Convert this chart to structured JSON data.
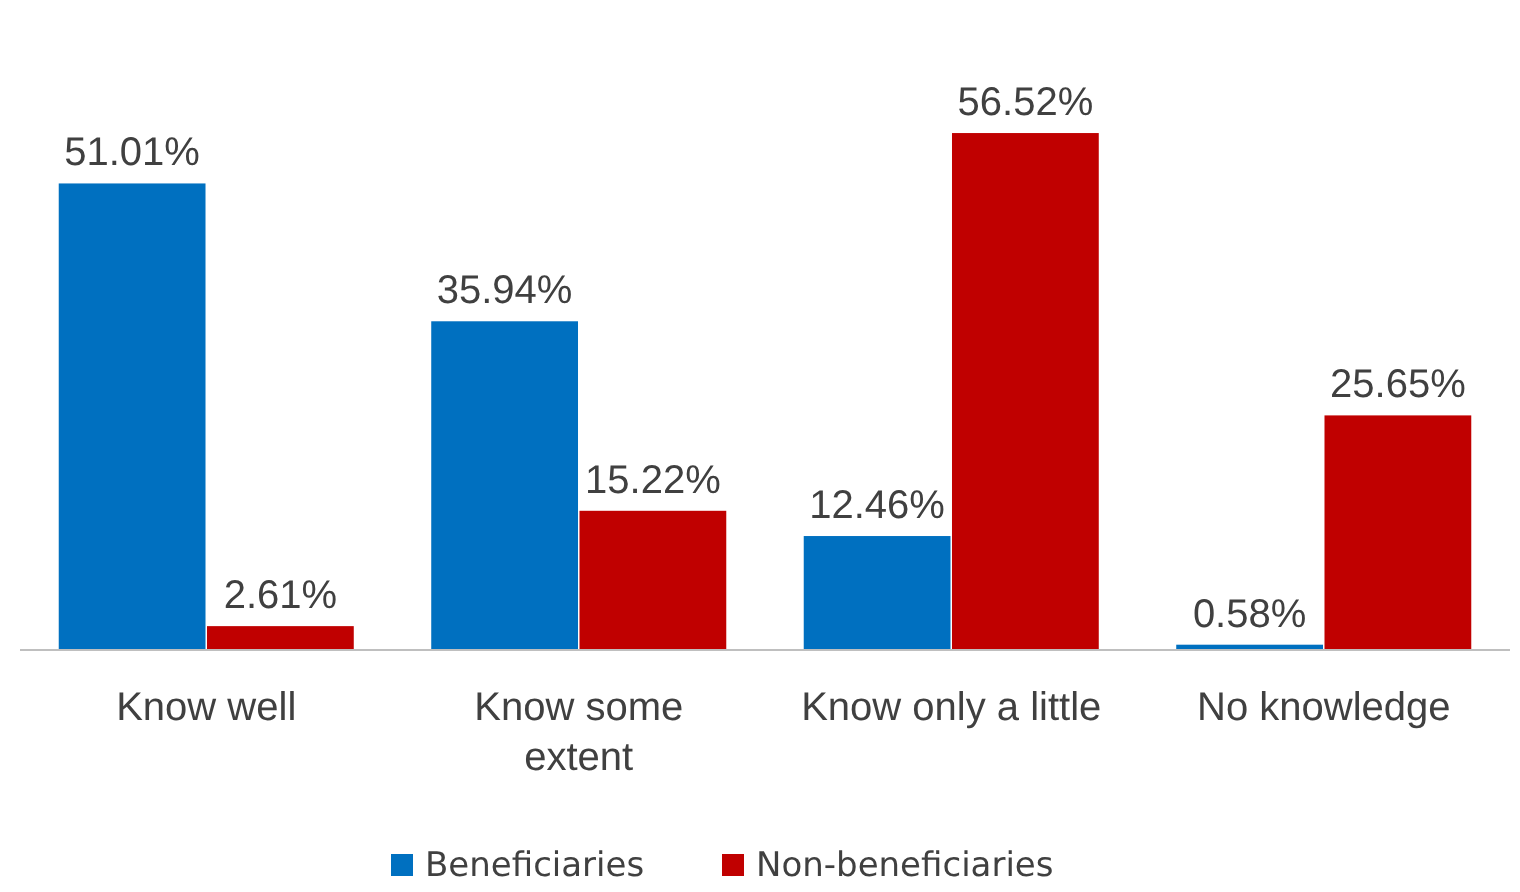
{
  "chart_data": {
    "type": "bar",
    "categories": [
      "Know well",
      "Know some extent",
      "Know only a little",
      "No knowledge"
    ],
    "series": [
      {
        "name": "Beneficiaries",
        "color": "#0070c0",
        "values": [
          51.01,
          35.94,
          12.46,
          0.58
        ],
        "value_labels": [
          "51.01%",
          "35.94%",
          "12.46%",
          "0.58%"
        ]
      },
      {
        "name": "Non-beneficiaries",
        "color": "#c00000",
        "values": [
          2.61,
          15.22,
          56.52,
          25.65
        ],
        "value_labels": [
          "2.61%",
          "15.22%",
          "56.52%",
          "25.65%"
        ]
      }
    ],
    "legend": "bottom"
  }
}
